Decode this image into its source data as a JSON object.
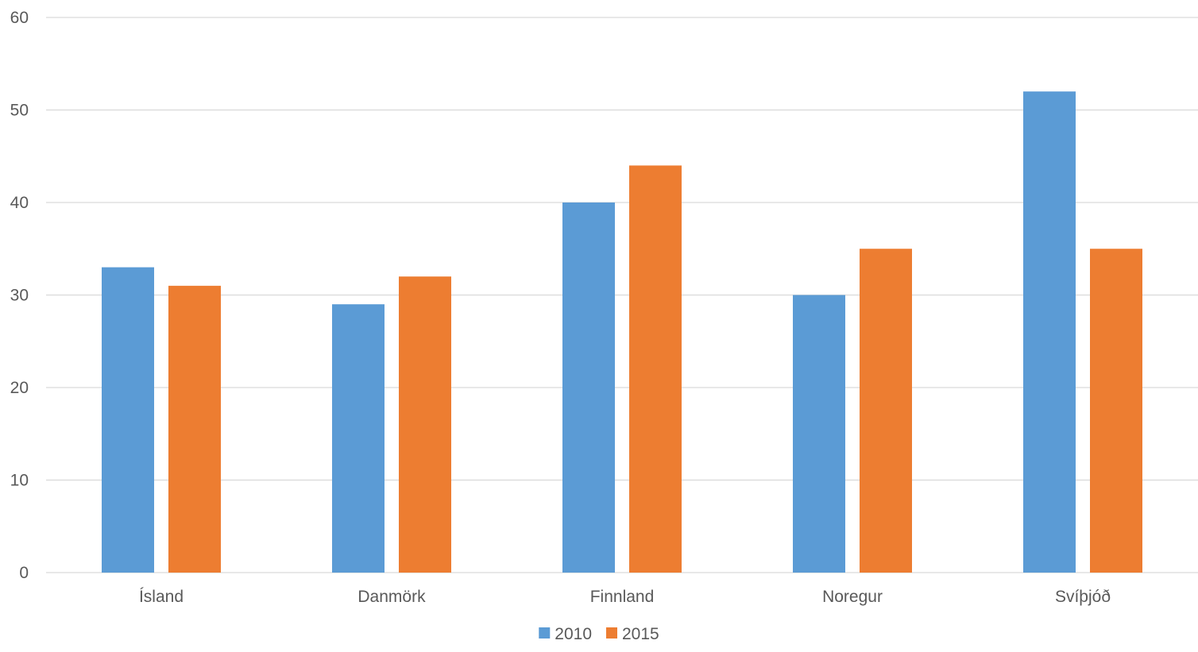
{
  "chart_data": {
    "type": "bar",
    "categories": [
      "Ísland",
      "Danmörk",
      "Finnland",
      "Noregur",
      "Svíþjóð"
    ],
    "series": [
      {
        "name": "2010",
        "values": [
          33,
          29,
          40,
          30,
          52
        ],
        "color": "#5b9bd5"
      },
      {
        "name": "2015",
        "values": [
          31,
          32,
          44,
          35,
          35
        ],
        "color": "#ed7d31"
      }
    ],
    "title": "",
    "xlabel": "",
    "ylabel": "",
    "ylim": [
      0,
      60
    ],
    "yticks": [
      "0",
      "10",
      "20",
      "30",
      "40",
      "50",
      "60"
    ],
    "grid": true,
    "legend_position": "bottom"
  }
}
